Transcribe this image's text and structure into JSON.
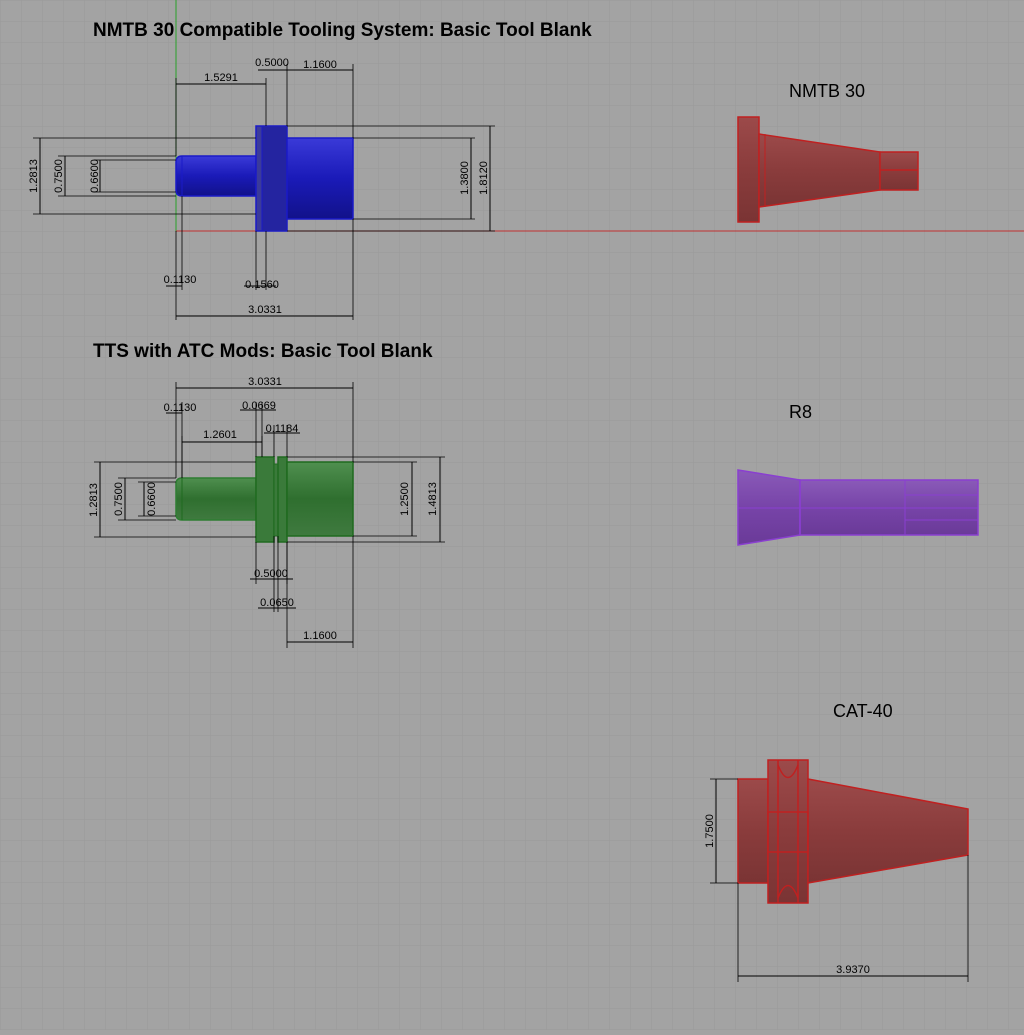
{
  "titles": {
    "nmtb": "NMTB 30 Compatible Tooling System:  Basic Tool Blank",
    "tts": "TTS with ATC Mods:  Basic Tool Blank"
  },
  "labels": {
    "nmtb30": "NMTB 30",
    "r8": "R8",
    "cat40": "CAT-40"
  },
  "dims": {
    "nmtb": {
      "d_1_5291": "1.5291",
      "d_0_5000": "0.5000",
      "d_1_1600": "1.1600",
      "d_1_2813": "1.2813",
      "d_0_7500": "0.7500",
      "d_0_6600": "0.6600",
      "d_1_3800": "1.3800",
      "d_1_8120": "1.8120",
      "d_0_1130": "0.1130",
      "d_0_1560": "0.1560",
      "d_3_0331": "3.0331"
    },
    "tts": {
      "d_3_0331": "3.0331",
      "d_0_1130": "0.1130",
      "d_0_0669": "0.0669",
      "d_0_1184": "0.1184",
      "d_1_2601": "1.2601",
      "d_1_2813": "1.2813",
      "d_0_7500": "0.7500",
      "d_0_6600": "0.6600",
      "d_1_2500": "1.2500",
      "d_1_4813": "1.4813",
      "d_0_5000": "0.5000",
      "d_0_0650": "0.0650",
      "d_1_1600": "1.1600"
    },
    "cat": {
      "d_1_7500": "1.7500",
      "d_3_9370": "3.9370"
    }
  },
  "colors": {
    "background": "#a3a3a3",
    "grid": "#999999",
    "nmtb_part": "#1a1ac8",
    "tts_part": "#2e7d32",
    "r8_part": "#7b3fb5",
    "red_part": "#b03030",
    "axis_green": "#2aa02a",
    "axis_red": "#c03030"
  }
}
